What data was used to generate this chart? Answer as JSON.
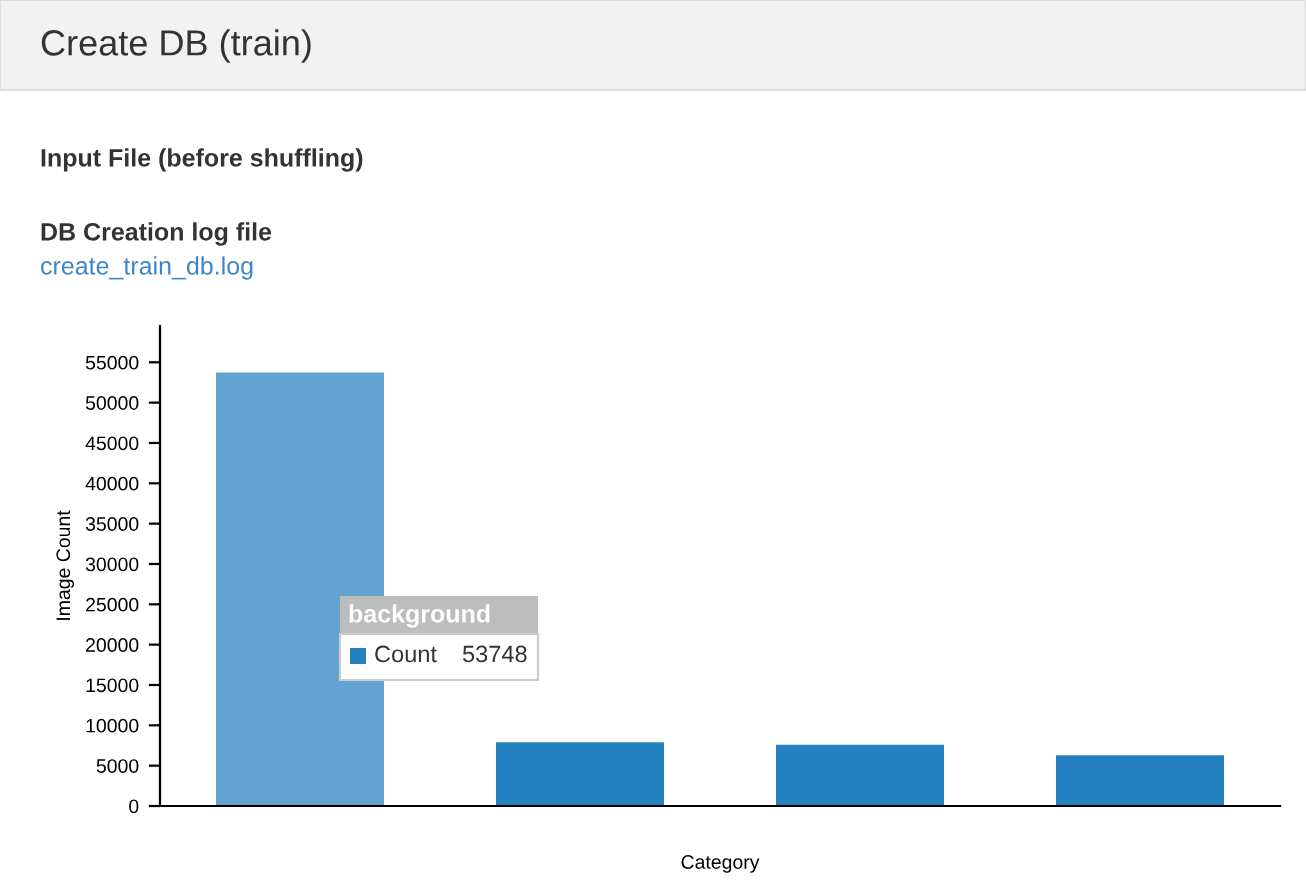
{
  "chart_data": {
    "type": "bar",
    "title": "Create DB (train)",
    "categories": [
      null,
      null,
      null,
      null
    ],
    "values": [
      53748,
      7900,
      7600,
      6300
    ],
    "colors": [
      "#62a3cf",
      "#2480bf",
      "#2480bf",
      "#2480bf"
    ],
    "xlabel": "Category",
    "ylabel": "Image Count",
    "ylim": [
      0,
      59500
    ],
    "yticks": [
      0,
      5000,
      10000,
      15000,
      20000,
      25000,
      30000,
      35000,
      40000,
      45000,
      50000,
      55000
    ],
    "grid": false,
    "legend": false,
    "annotations": [
      "Input File (before shuffling)",
      "DB Creation log file",
      "create_train_db.log",
      "background",
      "Count",
      "53748"
    ]
  }
}
